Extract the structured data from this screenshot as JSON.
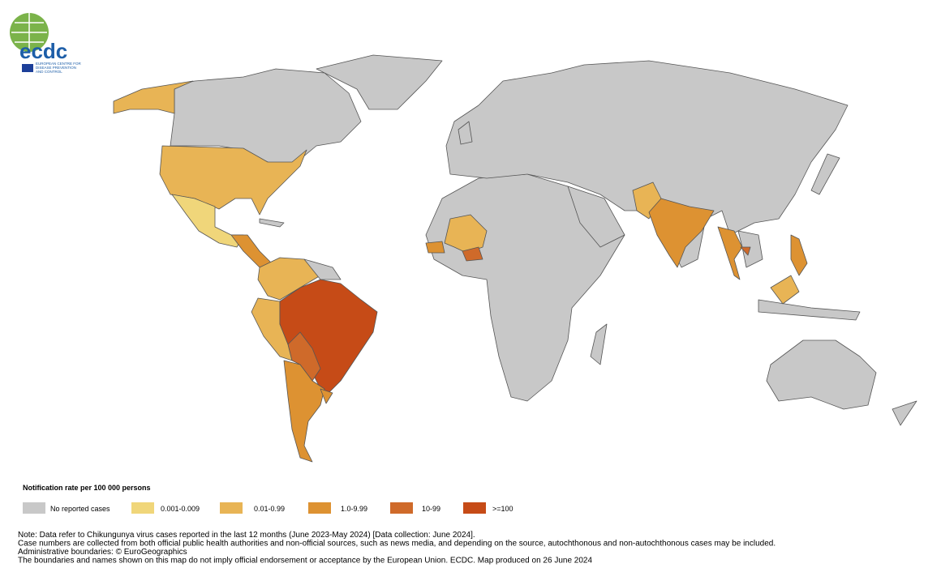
{
  "header": {
    "logo_text": "ecdc",
    "logo_subtitle": [
      "EUROPEAN CENTRE FOR",
      "DISEASE PREVENTION",
      "AND CONTROL"
    ]
  },
  "legend": {
    "title": "Notification rate per 100 000 persons",
    "items": [
      {
        "label": "No reported cases",
        "color": "#c8c8c8"
      },
      {
        "label": "0.001-0.009",
        "color": "#f0d67a"
      },
      {
        "label": "0.01-0.99",
        "color": "#e8b455"
      },
      {
        "label": "1.0-9.99",
        "color": "#dd9232"
      },
      {
        "label": "10-99",
        "color": "#cf6a2a"
      },
      {
        "label": ">=100",
        "color": "#c64b17"
      }
    ]
  },
  "notes": [
    "Note: Data refer to Chikungunya virus cases reported in the last 12 months (June 2023-May 2024) [Data collection: June 2024].",
    "Case numbers are collected from both official public health authorities and non-official sources, such as news media, and depending on the source, autochthonous and non-autochthonous cases may be included.",
    "Administrative boundaries: © EuroGeographics",
    "The boundaries and names shown on this map do not imply official endorsement or acceptance by the European Union. ECDC. Map produced on 26 June 2024"
  ]
}
